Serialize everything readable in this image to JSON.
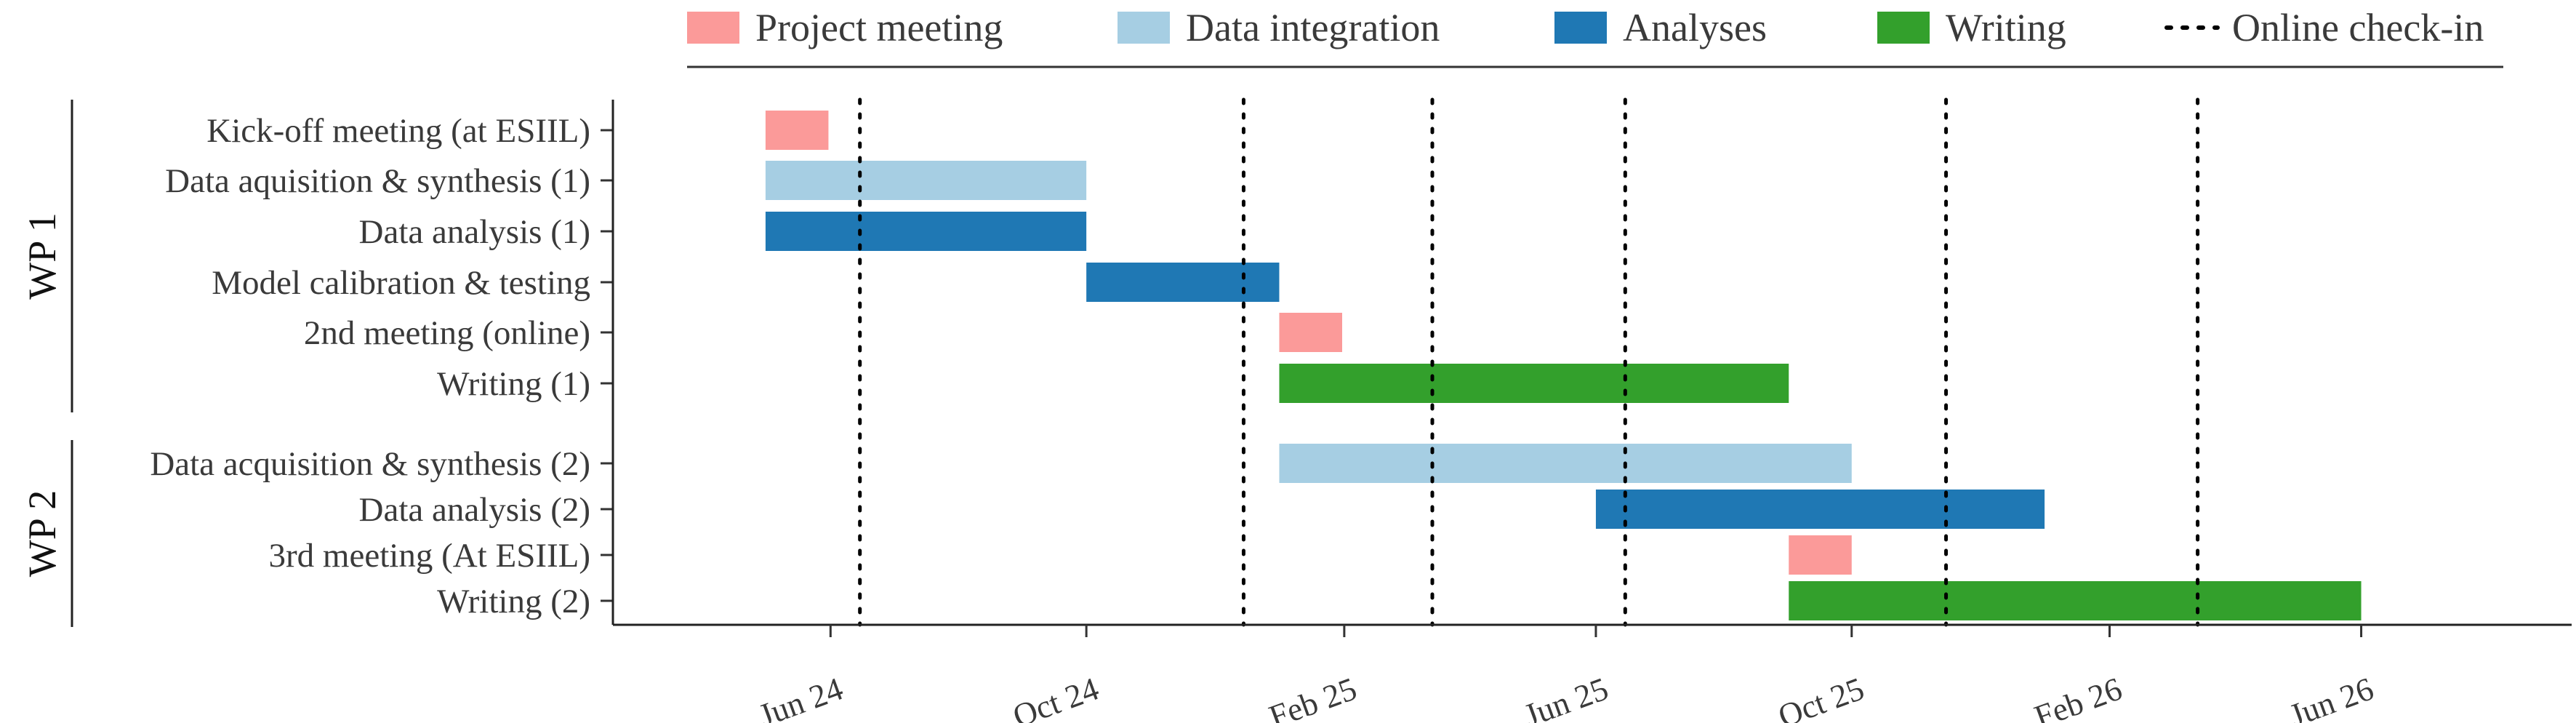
{
  "chart_data": {
    "type": "gantt",
    "x_axis": {
      "min": "2024-03-01",
      "max": "2026-08-31",
      "ticks": [
        {
          "date": "2024-06-01",
          "label": "Jun 24"
        },
        {
          "date": "2024-10-01",
          "label": "Oct 24"
        },
        {
          "date": "2025-02-01",
          "label": "Feb 25"
        },
        {
          "date": "2025-06-01",
          "label": "Jun 25"
        },
        {
          "date": "2025-10-01",
          "label": "Oct 25"
        },
        {
          "date": "2026-02-01",
          "label": "Feb 26"
        },
        {
          "date": "2026-06-01",
          "label": "Jun 26"
        }
      ]
    },
    "legend": {
      "placement": "top",
      "entries": [
        {
          "label": "Project meeting",
          "kind": "box",
          "color": "#fb9a99"
        },
        {
          "label": "Data integration",
          "kind": "box",
          "color": "#a6cee3"
        },
        {
          "label": "Analyses",
          "kind": "box",
          "color": "#1f78b4"
        },
        {
          "label": "Writing",
          "kind": "box",
          "color": "#33a02c"
        },
        {
          "label": "Online check-in",
          "kind": "dotted-line",
          "color": "#000000"
        }
      ]
    },
    "groups": [
      {
        "label": "WP 1",
        "tasks": [
          {
            "label": "Kick-off meeting (at ESIIL)",
            "category": "Project meeting",
            "start": "2024-05-01",
            "end": "2024-05-31"
          },
          {
            "label": "Data aquisition & synthesis (1)",
            "category": "Data integration",
            "start": "2024-05-01",
            "end": "2024-10-01"
          },
          {
            "label": "Data analysis (1)",
            "category": "Analyses",
            "start": "2024-05-01",
            "end": "2024-10-01"
          },
          {
            "label": "Model calibration & testing",
            "category": "Analyses",
            "start": "2024-10-01",
            "end": "2025-01-01"
          },
          {
            "label": "2nd meeting (online)",
            "category": "Project meeting",
            "start": "2025-01-01",
            "end": "2025-01-31"
          },
          {
            "label": "Writing (1)",
            "category": "Writing",
            "start": "2025-01-01",
            "end": "2025-09-01"
          }
        ]
      },
      {
        "label": "WP 2",
        "tasks": [
          {
            "label": "Data acquisition & synthesis (2)",
            "category": "Data integration",
            "start": "2025-01-01",
            "end": "2025-10-01"
          },
          {
            "label": "Data analysis (2)",
            "category": "Analyses",
            "start": "2025-06-01",
            "end": "2026-01-01"
          },
          {
            "label": "3rd meeting (At ESIIL)",
            "category": "Project meeting",
            "start": "2025-09-01",
            "end": "2025-10-01"
          },
          {
            "label": "Writing (2)",
            "category": "Writing",
            "start": "2025-09-01",
            "end": "2026-06-01"
          }
        ]
      }
    ],
    "online_checkins": [
      "2024-06-15",
      "2024-12-15",
      "2025-03-15",
      "2025-06-15",
      "2025-11-15",
      "2026-03-15"
    ]
  }
}
